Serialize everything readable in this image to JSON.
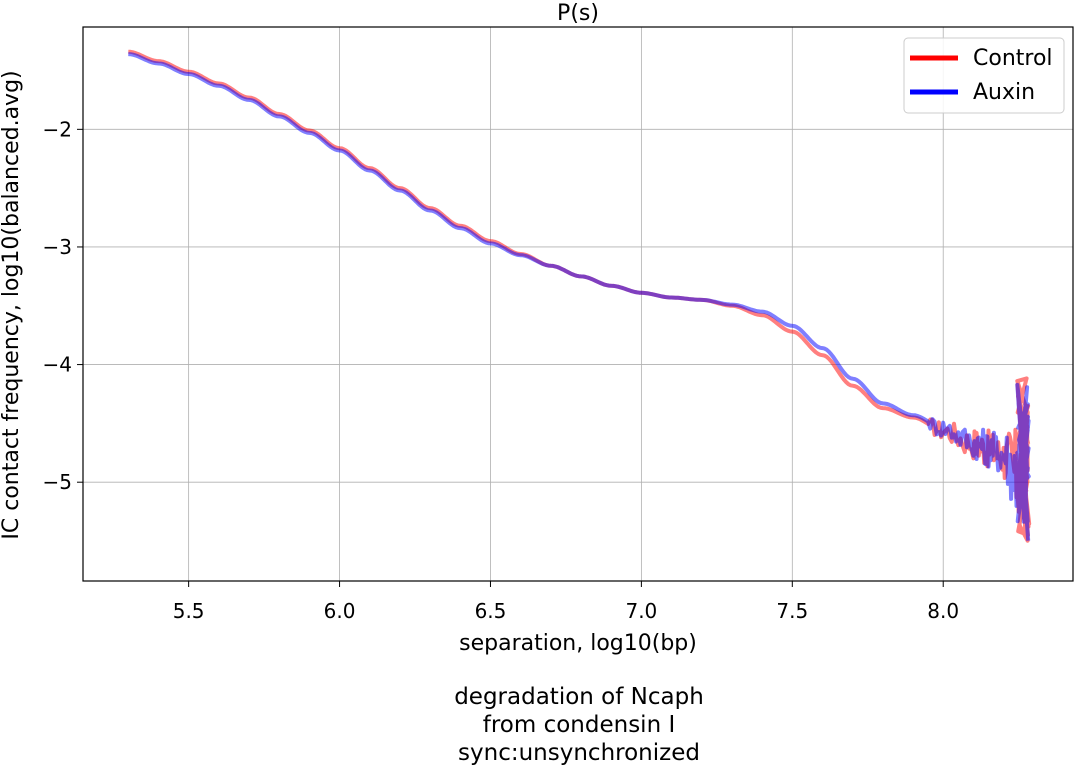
{
  "chart_data": {
    "type": "line",
    "title": "P(s)",
    "xlabel": "separation, log10(bp)",
    "ylabel": "IC contact frequency, log10(balanced.avg)",
    "caption_lines": [
      "degradation of Ncaph",
      "from condensin I",
      "sync:unsynchronized"
    ],
    "xlim": [
      5.15,
      8.43
    ],
    "ylim": [
      -5.84,
      -1.13
    ],
    "xticks": [
      5.5,
      6.0,
      6.5,
      7.0,
      7.5,
      8.0
    ],
    "xtick_labels": [
      "5.5",
      "6.0",
      "6.5",
      "7.0",
      "7.5",
      "8.0"
    ],
    "yticks": [
      -2,
      -3,
      -4,
      -5
    ],
    "ytick_labels": [
      "−2",
      "−3",
      "−4",
      "−5"
    ],
    "grid": true,
    "legend": {
      "position": "top-right",
      "entries": [
        "Control",
        "Auxin"
      ]
    },
    "series": [
      {
        "name": "Control",
        "color": "#ff0000",
        "x": [
          5.3,
          5.4,
          5.5,
          5.6,
          5.7,
          5.8,
          5.9,
          6.0,
          6.1,
          6.2,
          6.3,
          6.4,
          6.5,
          6.6,
          6.7,
          6.8,
          6.9,
          7.0,
          7.1,
          7.2,
          7.3,
          7.4,
          7.5,
          7.6,
          7.7,
          7.8,
          7.9,
          8.0,
          8.1,
          8.15,
          8.2,
          8.25,
          8.28
        ],
        "y": [
          -1.34,
          -1.42,
          -1.51,
          -1.61,
          -1.73,
          -1.87,
          -2.01,
          -2.16,
          -2.33,
          -2.5,
          -2.67,
          -2.82,
          -2.95,
          -3.06,
          -3.16,
          -3.25,
          -3.33,
          -3.39,
          -3.43,
          -3.45,
          -3.5,
          -3.58,
          -3.72,
          -3.92,
          -4.18,
          -4.37,
          -4.45,
          -4.56,
          -4.67,
          -4.72,
          -4.78,
          -4.95,
          -4.9
        ]
      },
      {
        "name": "Auxin",
        "color": "#0000ff",
        "x": [
          5.3,
          5.4,
          5.5,
          5.6,
          5.7,
          5.8,
          5.9,
          6.0,
          6.1,
          6.2,
          6.3,
          6.4,
          6.5,
          6.6,
          6.7,
          6.8,
          6.9,
          7.0,
          7.1,
          7.2,
          7.3,
          7.4,
          7.5,
          7.6,
          7.7,
          7.8,
          7.9,
          8.0,
          8.1,
          8.15,
          8.2,
          8.25,
          8.28
        ],
        "y": [
          -1.36,
          -1.44,
          -1.53,
          -1.63,
          -1.75,
          -1.89,
          -2.03,
          -2.18,
          -2.35,
          -2.52,
          -2.69,
          -2.84,
          -2.97,
          -3.07,
          -3.16,
          -3.25,
          -3.33,
          -3.39,
          -3.43,
          -3.45,
          -3.49,
          -3.55,
          -3.67,
          -3.86,
          -4.12,
          -4.33,
          -4.43,
          -4.54,
          -4.66,
          -4.71,
          -4.76,
          -4.93,
          -4.88
        ]
      }
    ]
  }
}
